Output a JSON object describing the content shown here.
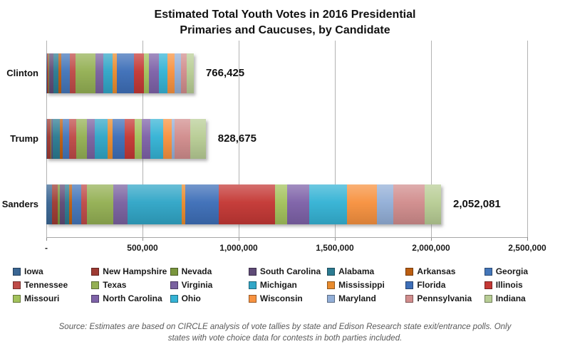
{
  "chart_data": {
    "type": "bar",
    "subtype": "horizontal-stacked",
    "title_line1": "Estimated Total Youth Votes in 2016 Presidential",
    "title_line2": "Primaries and Caucuses, by Candidate",
    "categories": [
      "Clinton",
      "Trump",
      "Sanders"
    ],
    "totals": [
      766425,
      828675,
      2052081
    ],
    "total_labels": [
      "766,425",
      "828,675",
      "2,052,081"
    ],
    "axis": {
      "min": 0,
      "max": 2500000,
      "tick_interval": 500000,
      "tick_labels": [
        "-",
        "500,000",
        "1,000,000",
        "1,500,000",
        "2,000,000",
        "2,500,000"
      ],
      "grid": true
    },
    "legend_position": "bottom",
    "series": [
      {
        "name": "Iowa",
        "color": "#3A6693",
        "values": [
          3500,
          3700,
          30500
        ]
      },
      {
        "name": "New Hampshire",
        "color": "#9E3B33",
        "values": [
          7100,
          18400,
          30500
        ]
      },
      {
        "name": "Nevada",
        "color": "#7A963E",
        "values": [
          3500,
          3700,
          7600
        ]
      },
      {
        "name": "South Carolina",
        "color": "#5F4B77",
        "values": [
          21300,
          7400,
          26700
        ]
      },
      {
        "name": "Alabama",
        "color": "#2C7B91",
        "values": [
          28400,
          36800,
          22900
        ]
      },
      {
        "name": "Arkansas",
        "color": "#BC5E11",
        "values": [
          14200,
          14700,
          15300
        ]
      },
      {
        "name": "Georgia",
        "color": "#4476B9",
        "values": [
          46100,
          33100,
          49600
        ]
      },
      {
        "name": "Tennessee",
        "color": "#BE4B48",
        "values": [
          28400,
          36800,
          26700
        ]
      },
      {
        "name": "Texas",
        "color": "#94B054",
        "values": [
          103125,
          55200,
          137300
        ]
      },
      {
        "name": "Virginia",
        "color": "#7A62A0",
        "values": [
          42600,
          44200,
          76300
        ]
      },
      {
        "name": "Michigan",
        "color": "#31A6C7",
        "values": [
          46100,
          66300,
          282200
        ]
      },
      {
        "name": "Mississippi",
        "color": "#E88B2E",
        "values": [
          21300,
          25800,
          15300
        ]
      },
      {
        "name": "Florida",
        "color": "#3E6FB8",
        "values": [
          88700,
          62600,
          175400
        ]
      },
      {
        "name": "Illinois",
        "color": "#C43835",
        "values": [
          53200,
          51600,
          293700
        ]
      },
      {
        "name": "Missouri",
        "color": "#A3C25C",
        "values": [
          24800,
          36800,
          61000
        ]
      },
      {
        "name": "North Carolina",
        "color": "#7E62A8",
        "values": [
          53200,
          44200,
          114400
        ]
      },
      {
        "name": "Ohio",
        "color": "#35B3D5",
        "values": [
          46100,
          66300,
          198300
        ]
      },
      {
        "name": "Wisconsin",
        "color": "#F79240",
        "values": [
          35500,
          44200,
          156400
        ]
      },
      {
        "name": "Maryland",
        "color": "#93AFD7",
        "values": [
          31900,
          14700,
          83900
        ]
      },
      {
        "name": "Pennsylvania",
        "color": "#D18D8D",
        "values": [
          31900,
          81175,
          164000
        ]
      },
      {
        "name": "Indiana",
        "color": "#B8CD95",
        "values": [
          35500,
          81000,
          84081
        ]
      }
    ]
  },
  "footer": {
    "source_line1": "Source:  Estimates are based on CIRCLE analysis of vote tallies by state and Edison Research state exit/entrance polls.  Only",
    "source_line2": "states with vote choice data for contests in both parties included."
  }
}
